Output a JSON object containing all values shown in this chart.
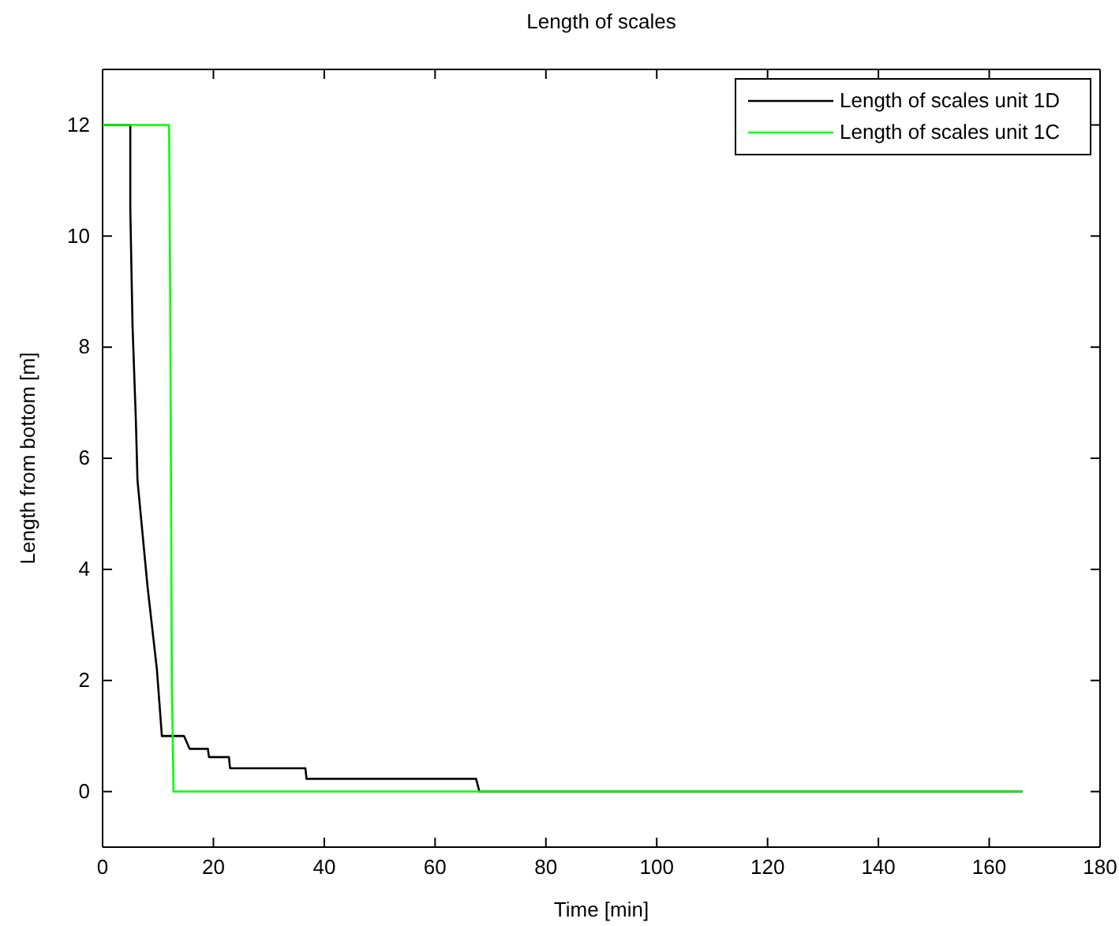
{
  "chart_data": {
    "type": "line",
    "title": "Length of scales",
    "xlabel": "Time [min]",
    "ylabel": "Length from bottom [m]",
    "xlim": [
      0,
      180
    ],
    "xticks": [
      0,
      20,
      40,
      60,
      80,
      100,
      120,
      140,
      160,
      180
    ],
    "ylim": [
      -1,
      13
    ],
    "yticks": [
      0,
      2,
      4,
      6,
      8,
      10,
      12
    ],
    "grid": false,
    "legend": "top right",
    "series": [
      {
        "name": "Length of scales unit 1D",
        "color": "#000000",
        "x": [
          0,
          5,
          5,
          5.4,
          6,
          6.3,
          8.1,
          9.8,
          10.7,
          14.7,
          15.7,
          19,
          19.2,
          22.8,
          23,
          36.6,
          36.8,
          67.4,
          68,
          166
        ],
        "values": [
          12,
          12,
          10.5,
          8.4,
          6.7,
          5.6,
          3.7,
          2.2,
          1,
          1,
          0.77,
          0.77,
          0.62,
          0.62,
          0.42,
          0.42,
          0.23,
          0.23,
          0,
          0
        ]
      },
      {
        "name": "Length of scales unit 1C",
        "color": "#00ff00",
        "x": [
          0,
          12,
          12.2,
          12.5,
          12.8,
          166
        ],
        "values": [
          12,
          12,
          9,
          2,
          0,
          0
        ]
      }
    ]
  }
}
